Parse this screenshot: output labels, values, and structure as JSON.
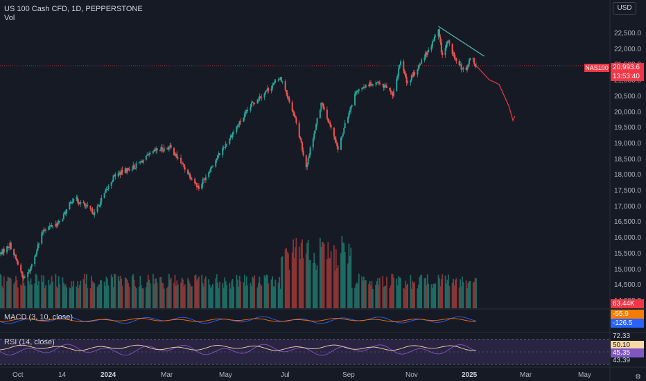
{
  "header": {
    "symbol_line": "US 100 Cash CFD, 1D, PEPPERSTONE",
    "vol_label": "Vol",
    "currency_button": "USD"
  },
  "price_axis": {
    "ticks": [
      "22,500.0",
      "22,000.0",
      "21,500.0",
      "21,000.0",
      "20,500.0",
      "20,000.0",
      "19,500.0",
      "19,000.0",
      "18,500.0",
      "18,000.0",
      "17,500.0",
      "17,000.0",
      "16,500.0",
      "16,000.0",
      "15,500.0",
      "15,000.0",
      "14,500.0",
      "14,000.0"
    ],
    "last_price": "20,993.6",
    "countdown": "13:53:40",
    "symbol_badge": "NAS100",
    "volume_badge": "63.44K"
  },
  "time_axis": {
    "labels": [
      "Oct",
      "14",
      "2024",
      "Mar",
      "May",
      "Jul",
      "Sep",
      "Nov",
      "2025",
      "Mar",
      "May"
    ],
    "bold": [
      "2024",
      "2025"
    ]
  },
  "macd": {
    "label": "MACD (3, 10, close)",
    "macd_value": "-55.9",
    "signal_value": "-126.5"
  },
  "rsi": {
    "label": "RSI (14, close)",
    "upper": "72.33",
    "value": "50.10",
    "ma_value": "45.35",
    "lower": "43.39"
  },
  "colors": {
    "background": "#161a25",
    "up": "#26a69a",
    "down": "#ef5350",
    "vol_up": "#1e6b63",
    "vol_down": "#8b3434",
    "macd_line": "#2962ff",
    "signal_line": "#ff6d00",
    "rsi_line": "#7e57c2",
    "rsi_ma": "#f7d9a6",
    "trendline": "#4db6ac",
    "projection": "#f23645",
    "rsi_band": "#2a2443"
  },
  "chart_data": {
    "type": "candlestick",
    "title": "US 100 Cash CFD, 1D, PEPPERSTONE",
    "ylim": [
      13600,
      22900
    ],
    "x_range": [
      "Oct 2023",
      "May 2025"
    ],
    "anchors": [
      {
        "date": "2023-10-02",
        "close": 15000
      },
      {
        "date": "2023-10-12",
        "close": 15300
      },
      {
        "date": "2023-10-26",
        "close": 14200
      },
      {
        "date": "2023-11-01",
        "close": 14500
      },
      {
        "date": "2023-11-15",
        "close": 15800
      },
      {
        "date": "2023-12-01",
        "close": 16000
      },
      {
        "date": "2023-12-15",
        "close": 16800
      },
      {
        "date": "2024-01-05",
        "close": 16300
      },
      {
        "date": "2024-01-25",
        "close": 17500
      },
      {
        "date": "2024-02-15",
        "close": 17800
      },
      {
        "date": "2024-03-07",
        "close": 18300
      },
      {
        "date": "2024-03-21",
        "close": 18400
      },
      {
        "date": "2024-04-19",
        "close": 17100
      },
      {
        "date": "2024-05-02",
        "close": 17800
      },
      {
        "date": "2024-05-22",
        "close": 18800
      },
      {
        "date": "2024-06-12",
        "close": 19800
      },
      {
        "date": "2024-07-10",
        "close": 20600
      },
      {
        "date": "2024-07-25",
        "close": 19300
      },
      {
        "date": "2024-08-05",
        "close": 17800
      },
      {
        "date": "2024-08-20",
        "close": 19800
      },
      {
        "date": "2024-09-06",
        "close": 18400
      },
      {
        "date": "2024-09-24",
        "close": 20200
      },
      {
        "date": "2024-10-15",
        "close": 20500
      },
      {
        "date": "2024-10-31",
        "close": 20100
      },
      {
        "date": "2024-11-08",
        "close": 21100
      },
      {
        "date": "2024-11-15",
        "close": 20400
      },
      {
        "date": "2024-12-06",
        "close": 21500
      },
      {
        "date": "2024-12-16",
        "close": 22100
      },
      {
        "date": "2024-12-20",
        "close": 21300
      },
      {
        "date": "2024-12-26",
        "close": 21800
      },
      {
        "date": "2025-01-03",
        "close": 21100
      },
      {
        "date": "2025-01-13",
        "close": 20800
      },
      {
        "date": "2025-01-17",
        "close": 21300
      },
      {
        "date": "2025-01-23",
        "close": 20994
      }
    ],
    "trendline": [
      {
        "date": "2024-12-16",
        "price": 22250
      },
      {
        "date": "2025-01-31",
        "price": 21300
      }
    ],
    "projection": [
      {
        "date": "2025-01-23",
        "price": 20994
      },
      {
        "date": "2025-02-05",
        "price": 20550
      },
      {
        "date": "2025-02-15",
        "price": 20400
      },
      {
        "date": "2025-02-25",
        "price": 19700
      },
      {
        "date": "2025-03-01",
        "price": 19250
      },
      {
        "date": "2025-03-03",
        "price": 19400
      }
    ],
    "last_price": 20993.6
  }
}
